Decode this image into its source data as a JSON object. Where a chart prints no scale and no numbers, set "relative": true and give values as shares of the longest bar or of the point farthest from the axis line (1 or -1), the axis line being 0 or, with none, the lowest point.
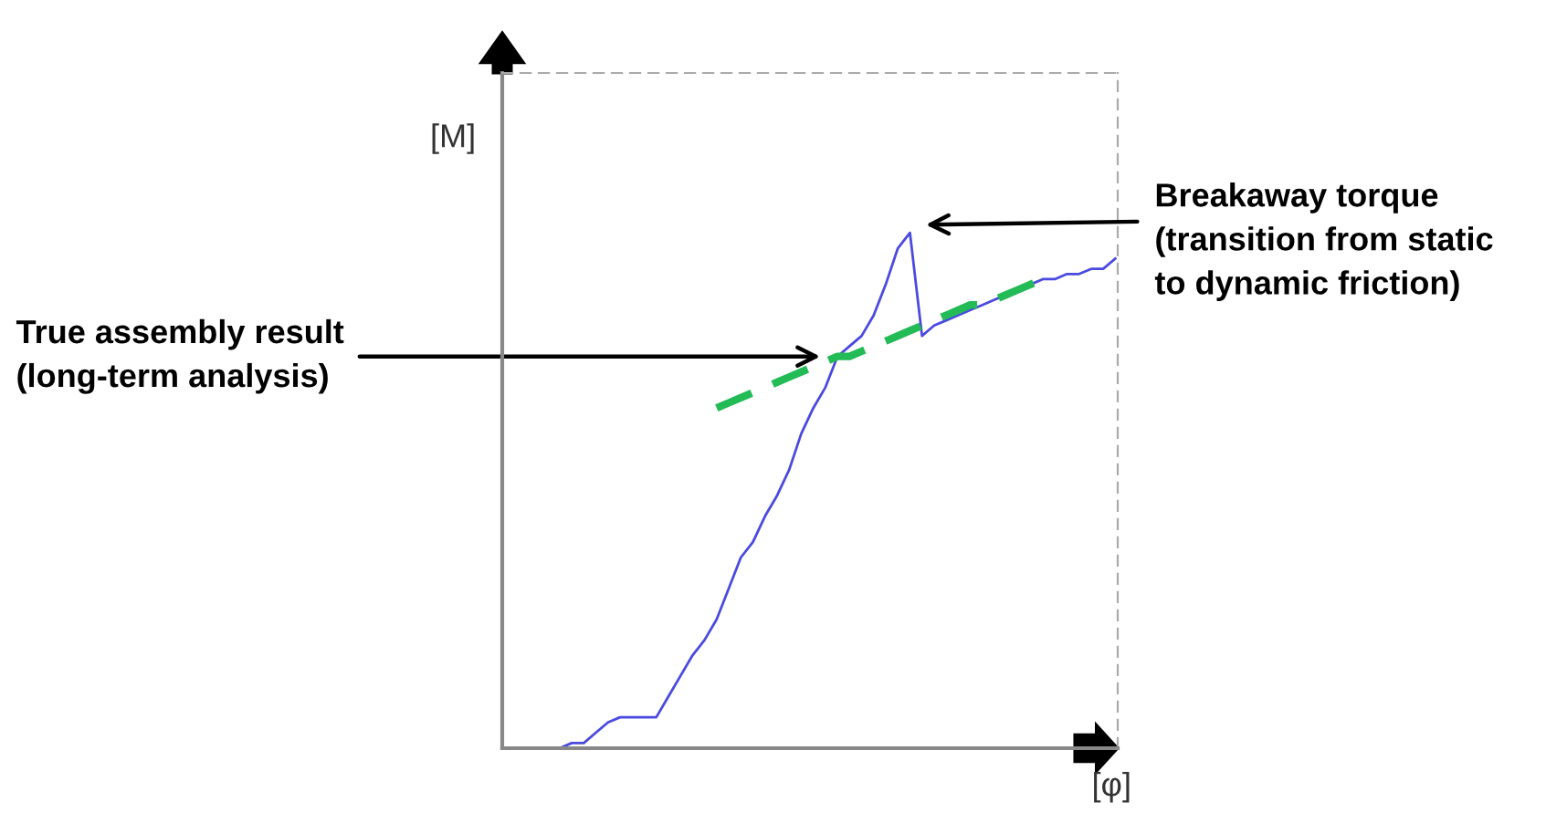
{
  "chart_data": {
    "type": "line",
    "relative": true,
    "xlabel": "[φ]",
    "ylabel": "[M]",
    "categories": [
      null,
      null,
      null,
      null,
      null,
      null,
      null,
      null,
      null,
      null,
      null,
      null,
      null,
      null,
      null,
      null,
      null,
      null,
      null,
      null,
      null,
      null,
      null,
      null,
      null,
      null,
      null,
      null,
      null,
      null,
      null,
      null,
      null,
      null,
      null,
      null,
      null,
      null,
      null,
      null,
      null,
      null,
      null,
      null,
      null,
      null,
      null,
      null
    ],
    "series": [
      {
        "color": "#4a4ae0",
        "line_style": "solid",
        "values": [
          0,
          0,
          0.01,
          0.01,
          0.03,
          0.05,
          0.06,
          0.06,
          0.06,
          0.06,
          0.1,
          0.14,
          0.18,
          0.21,
          0.25,
          0.31,
          0.37,
          0.4,
          0.45,
          0.49,
          0.54,
          0.61,
          0.66,
          0.7,
          0.76,
          0.78,
          0.8,
          0.84,
          0.9,
          0.97,
          1,
          0.8,
          0.82,
          0.83,
          0.84,
          0.85,
          0.86,
          0.87,
          0.88,
          0.89,
          0.9,
          0.91,
          0.91,
          0.92,
          0.92,
          0.93,
          0.93,
          0.95
        ]
      },
      {
        "color": "#22bb55",
        "line_style": "dashed",
        "values": [
          null,
          null,
          null,
          null,
          null,
          null,
          null,
          null,
          null,
          null,
          null,
          null,
          null,
          null,
          0.66,
          0.67,
          0.68,
          0.69,
          0.7,
          0.71,
          0.72,
          0.73,
          0.74,
          0.75,
          0.76,
          0.76,
          0.77,
          0.78,
          0.79,
          0.8,
          0.81,
          0.82,
          0.83,
          0.84,
          0.85,
          0.86,
          0.86,
          0.87,
          0.88,
          0.89,
          0.9,
          0.91,
          null,
          null,
          null,
          null,
          null,
          null
        ]
      }
    ],
    "annotations": [
      "True assembly result\n(long-term analysis)",
      "Breakaway torque\n(transition from static\nto dynamic friction)"
    ],
    "marker": "none",
    "grid": false
  }
}
